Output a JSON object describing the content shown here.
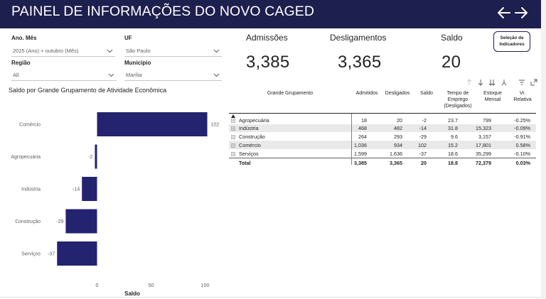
{
  "header": {
    "title": "PAINEL DE INFORMAÇÕES DO NOVO CAGED",
    "back_icon": "arrow-left-icon",
    "forward_icon": "arrow-right-icon"
  },
  "slicers": {
    "ano_mes": {
      "label": "Ano. Mês",
      "value": "2025 (Ano) + outubro (Mês)"
    },
    "uf": {
      "label": "UF",
      "value": "São Paulo"
    },
    "regiao": {
      "label": "Região",
      "value": "All"
    },
    "municipio": {
      "label": "Município",
      "value": "Marília"
    }
  },
  "kpis": {
    "admissoes": {
      "label": "Admissões",
      "value": "3,385"
    },
    "desligamentos": {
      "label": "Desligamentos",
      "value": "3,365"
    },
    "saldo": {
      "label": "Saldo",
      "value": "20"
    }
  },
  "selection_button": {
    "line1": "Seleção de",
    "line2": "Indicadores"
  },
  "chart_data": {
    "type": "bar",
    "orientation": "horizontal",
    "title": "Saldo por Grande Grupamento de Atividade Econômica",
    "categories": [
      "Comércio",
      "Agropecuária",
      "Indústria",
      "Construção",
      "Serviços"
    ],
    "values": [
      102,
      -2,
      -14,
      -29,
      -37
    ],
    "data_labels": [
      "102",
      "-2",
      "-14",
      "-29",
      "-37"
    ],
    "xlabel": "Saldo",
    "xticks": [
      "0",
      "50",
      "100"
    ],
    "xlim": [
      -40,
      104
    ],
    "bar_color": "#232370",
    "grid": false
  },
  "table": {
    "sort_icon": "sort-ascending-icon",
    "columns": {
      "grupo": "Grande Grupamento",
      "admitidos": "Admitidos",
      "desligados": "Desligados",
      "saldo": "Saldo",
      "tempo1": "Tempo de",
      "tempo2": "Emprego",
      "tempo3": "(Desligados)",
      "estoque1": "Estoque",
      "estoque2": "Mensal",
      "vr1": "Vr.",
      "vr2": "Relativa"
    },
    "rows": [
      {
        "grupo": "Agropecuária",
        "admitidos": "18",
        "desligados": "20",
        "saldo": "-2",
        "tempo": "23.7",
        "estoque": "799",
        "vr": "-0.25%"
      },
      {
        "grupo": "Indústria",
        "admitidos": "468",
        "desligados": "482",
        "saldo": "-14",
        "tempo": "31.8",
        "estoque": "15,323",
        "vr": "-0.09%"
      },
      {
        "grupo": "Construção",
        "admitidos": "264",
        "desligados": "293",
        "saldo": "-29",
        "tempo": "9.6",
        "estoque": "3,157",
        "vr": "-0.91%"
      },
      {
        "grupo": "Comércio",
        "admitidos": "1,036",
        "desligados": "934",
        "saldo": "102",
        "tempo": "15.2",
        "estoque": "17,801",
        "vr": "0.58%"
      },
      {
        "grupo": "Serviços",
        "admitidos": "1,599",
        "desligados": "1,636",
        "saldo": "-37",
        "tempo": "18.6",
        "estoque": "35,299",
        "vr": "-0.10%"
      }
    ],
    "total": {
      "grupo": "Total",
      "admitidos": "3,385",
      "desligados": "3,365",
      "saldo": "20",
      "tempo": "18.8",
      "estoque": "72,379",
      "vr": "0.03%"
    }
  }
}
